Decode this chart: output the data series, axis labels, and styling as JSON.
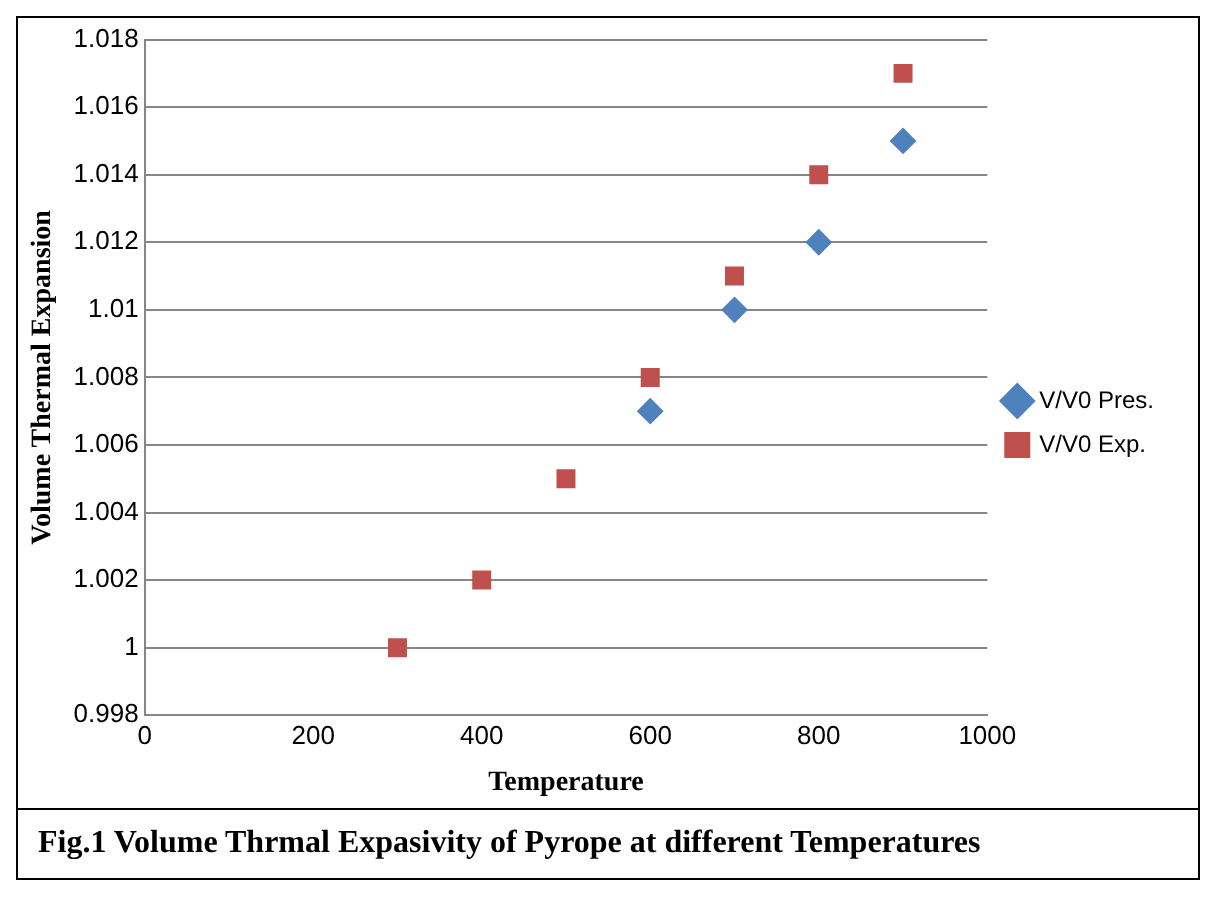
{
  "chart_data": {
    "type": "scatter",
    "xlabel": "Temperature",
    "ylabel": "Volume Thermal Expansion",
    "x": [
      300,
      400,
      500,
      600,
      700,
      800,
      900
    ],
    "series": [
      {
        "name": "V/V0 Pres.",
        "color": "#4f81bd",
        "marker": "diamond",
        "values": [
          null,
          null,
          null,
          1.007,
          1.01,
          1.012,
          1.015
        ]
      },
      {
        "name": "V/V0 Exp.",
        "color": "#c0504d",
        "marker": "square",
        "values": [
          1,
          1.002,
          1.005,
          1.008,
          1.011,
          1.014,
          1.017
        ]
      }
    ],
    "xlim": [
      0,
      1000
    ],
    "xticks": [
      0,
      200,
      400,
      600,
      800,
      1000
    ],
    "ylim": [
      0.998,
      1.018
    ],
    "yticks": [
      0.998,
      1,
      1.002,
      1.004,
      1.006,
      1.008,
      1.01,
      1.012,
      1.014,
      1.016,
      1.018
    ],
    "grid": "y",
    "legend": "right",
    "annotations": [
      "Fig.1 Volume Thrmal Expasivity of Pyrope at different Temperatures"
    ]
  }
}
